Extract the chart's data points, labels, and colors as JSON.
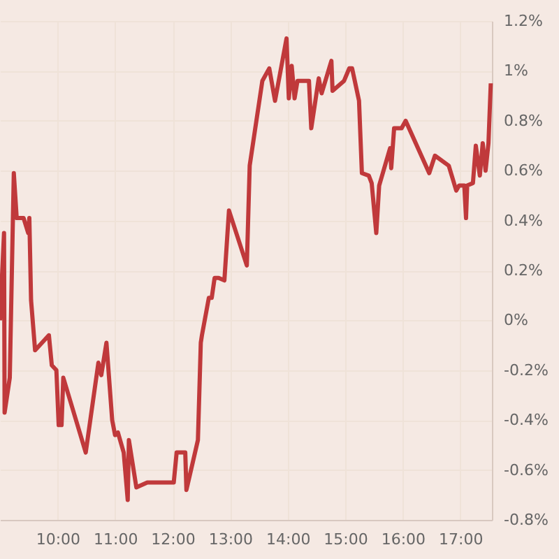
{
  "chart_data": {
    "type": "line",
    "x": [
      9.0,
      9.07,
      9.08,
      9.17,
      9.24,
      9.29,
      9.41,
      9.49,
      9.51,
      9.54,
      9.61,
      9.85,
      9.9,
      9.98,
      10.02,
      10.07,
      10.1,
      10.49,
      10.71,
      10.76,
      10.85,
      10.95,
      11.0,
      11.05,
      11.15,
      11.22,
      11.24,
      11.37,
      11.56,
      12.02,
      12.07,
      12.22,
      12.24,
      12.44,
      12.49,
      12.51,
      12.63,
      12.68,
      12.73,
      12.8,
      12.9,
      12.98,
      13.29,
      13.34,
      13.56,
      13.68,
      13.78,
      13.98,
      14.02,
      14.07,
      14.12,
      14.17,
      14.37,
      14.41,
      14.54,
      14.59,
      14.76,
      14.78,
      14.98,
      15.07,
      15.12,
      15.24,
      15.29,
      15.41,
      15.46,
      15.54,
      15.59,
      15.78,
      15.8,
      15.85,
      15.98,
      16.05,
      16.46,
      16.56,
      16.8,
      16.93,
      16.98,
      17.07,
      17.1,
      17.12,
      17.22,
      17.27,
      17.34,
      17.39,
      17.44,
      17.49,
      17.53
    ],
    "series": [
      {
        "color": "#c0393b",
        "values": [
          0.0,
          0.35,
          -0.37,
          -0.23,
          0.59,
          0.41,
          0.41,
          0.35,
          0.41,
          0.08,
          -0.12,
          -0.06,
          -0.18,
          -0.2,
          -0.42,
          -0.42,
          -0.23,
          -0.53,
          -0.17,
          -0.22,
          -0.09,
          -0.4,
          -0.46,
          -0.45,
          -0.53,
          -0.72,
          -0.48,
          -0.67,
          -0.65,
          -0.65,
          -0.53,
          -0.53,
          -0.68,
          -0.48,
          -0.09,
          -0.06,
          0.09,
          0.09,
          0.17,
          0.17,
          0.16,
          0.44,
          0.22,
          0.62,
          0.96,
          1.01,
          0.88,
          1.13,
          0.89,
          1.02,
          0.89,
          0.96,
          0.96,
          0.77,
          0.97,
          0.91,
          1.04,
          0.92,
          0.96,
          1.01,
          1.01,
          0.88,
          0.59,
          0.58,
          0.55,
          0.35,
          0.54,
          0.69,
          0.61,
          0.77,
          0.77,
          0.8,
          0.59,
          0.66,
          0.62,
          0.52,
          0.54,
          0.54,
          0.41,
          0.54,
          0.55,
          0.7,
          0.58,
          0.71,
          0.6,
          0.71,
          0.95
        ]
      }
    ],
    "xlim": [
      9.0,
      17.55
    ],
    "xticks": [
      {
        "value": 10,
        "label": "10:00"
      },
      {
        "value": 11,
        "label": "11:00"
      },
      {
        "value": 12,
        "label": "12:00"
      },
      {
        "value": 13,
        "label": "13:00"
      },
      {
        "value": 14,
        "label": "14:00"
      },
      {
        "value": 15,
        "label": "15:00"
      },
      {
        "value": 16,
        "label": "16:00"
      },
      {
        "value": 17,
        "label": "17:00"
      }
    ],
    "ylim": [
      -0.8,
      1.2
    ],
    "yticks": [
      {
        "value": -0.8,
        "label": "-0.8%"
      },
      {
        "value": -0.6,
        "label": "-0.6%"
      },
      {
        "value": -0.4,
        "label": "-0.4%"
      },
      {
        "value": -0.2,
        "label": "-0.2%"
      },
      {
        "value": 0,
        "label": "0%"
      },
      {
        "value": 0.2,
        "label": "0.2%"
      },
      {
        "value": 0.4,
        "label": "0.4%"
      },
      {
        "value": 0.6,
        "label": "0.6%"
      },
      {
        "value": 0.8,
        "label": "0.8%"
      },
      {
        "value": 1,
        "label": "1%"
      },
      {
        "value": 1.2,
        "label": "1.2%"
      }
    ],
    "grid": true,
    "line_style": "solid"
  }
}
